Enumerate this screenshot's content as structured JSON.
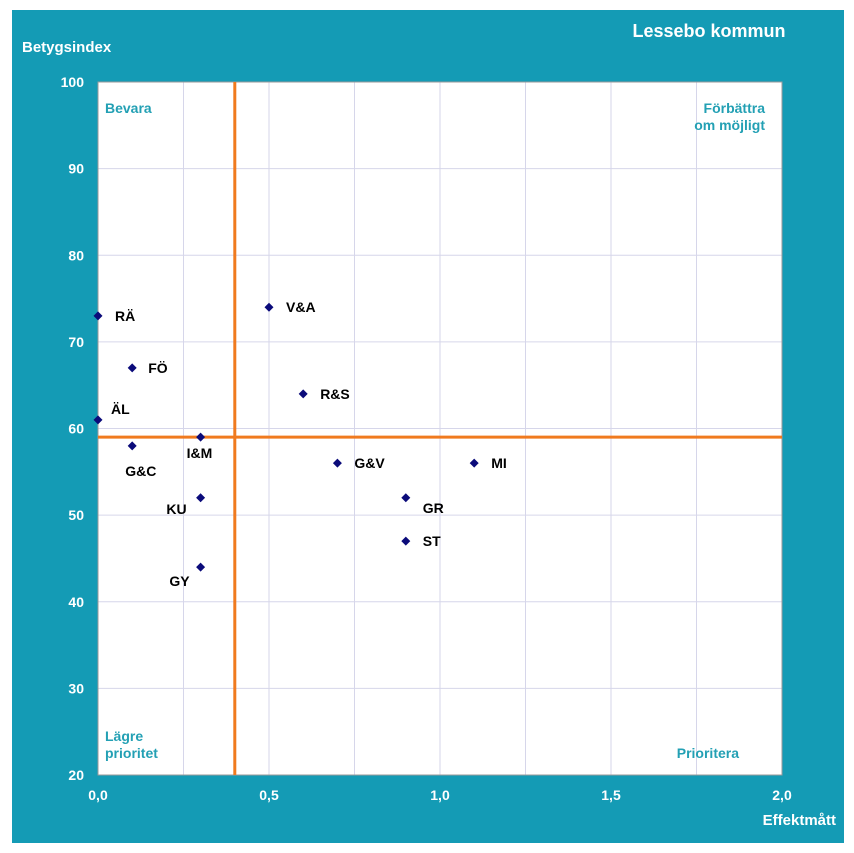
{
  "colors": {
    "background": "#149bb5",
    "plot": "#ffffff",
    "grid": "#d6d6ea",
    "threshold": "#f07a1e",
    "marker": "#0b0b7a",
    "quadrant_text": "#23a0b4"
  },
  "chart_data": {
    "type": "scatter",
    "title": "Lessebo kommun",
    "xlabel": "Effektmått",
    "ylabel": "Betygsindex",
    "xlim": [
      0,
      2
    ],
    "ylim": [
      20,
      100
    ],
    "xticks": [
      "0,0",
      "0,5",
      "1,0",
      "1,5",
      "2,0"
    ],
    "yticks": [
      "20",
      "30",
      "40",
      "50",
      "60",
      "70",
      "80",
      "90",
      "100"
    ],
    "grid": true,
    "thresholds": {
      "x": 0.4,
      "y": 59
    },
    "quadrants": {
      "top_left": [
        "Bevara"
      ],
      "top_right": [
        "Förbättra",
        "om möjligt"
      ],
      "bottom_left": [
        "Lägre",
        "prioritet"
      ],
      "bottom_right": [
        "Prioritera"
      ]
    },
    "points": [
      {
        "label": "RÄ",
        "x": 0.0,
        "y": 73
      },
      {
        "label": "FÖ",
        "x": 0.1,
        "y": 67
      },
      {
        "label": "ÄL",
        "x": 0.0,
        "y": 61
      },
      {
        "label": "G&C",
        "x": 0.1,
        "y": 58
      },
      {
        "label": "I&M",
        "x": 0.3,
        "y": 59
      },
      {
        "label": "KU",
        "x": 0.3,
        "y": 52
      },
      {
        "label": "GY",
        "x": 0.3,
        "y": 44
      },
      {
        "label": "V&A",
        "x": 0.5,
        "y": 74
      },
      {
        "label": "R&S",
        "x": 0.6,
        "y": 64
      },
      {
        "label": "G&V",
        "x": 0.7,
        "y": 56
      },
      {
        "label": "MI",
        "x": 1.1,
        "y": 56
      },
      {
        "label": "GR",
        "x": 0.9,
        "y": 52
      },
      {
        "label": "ST",
        "x": 0.9,
        "y": 47
      }
    ]
  }
}
